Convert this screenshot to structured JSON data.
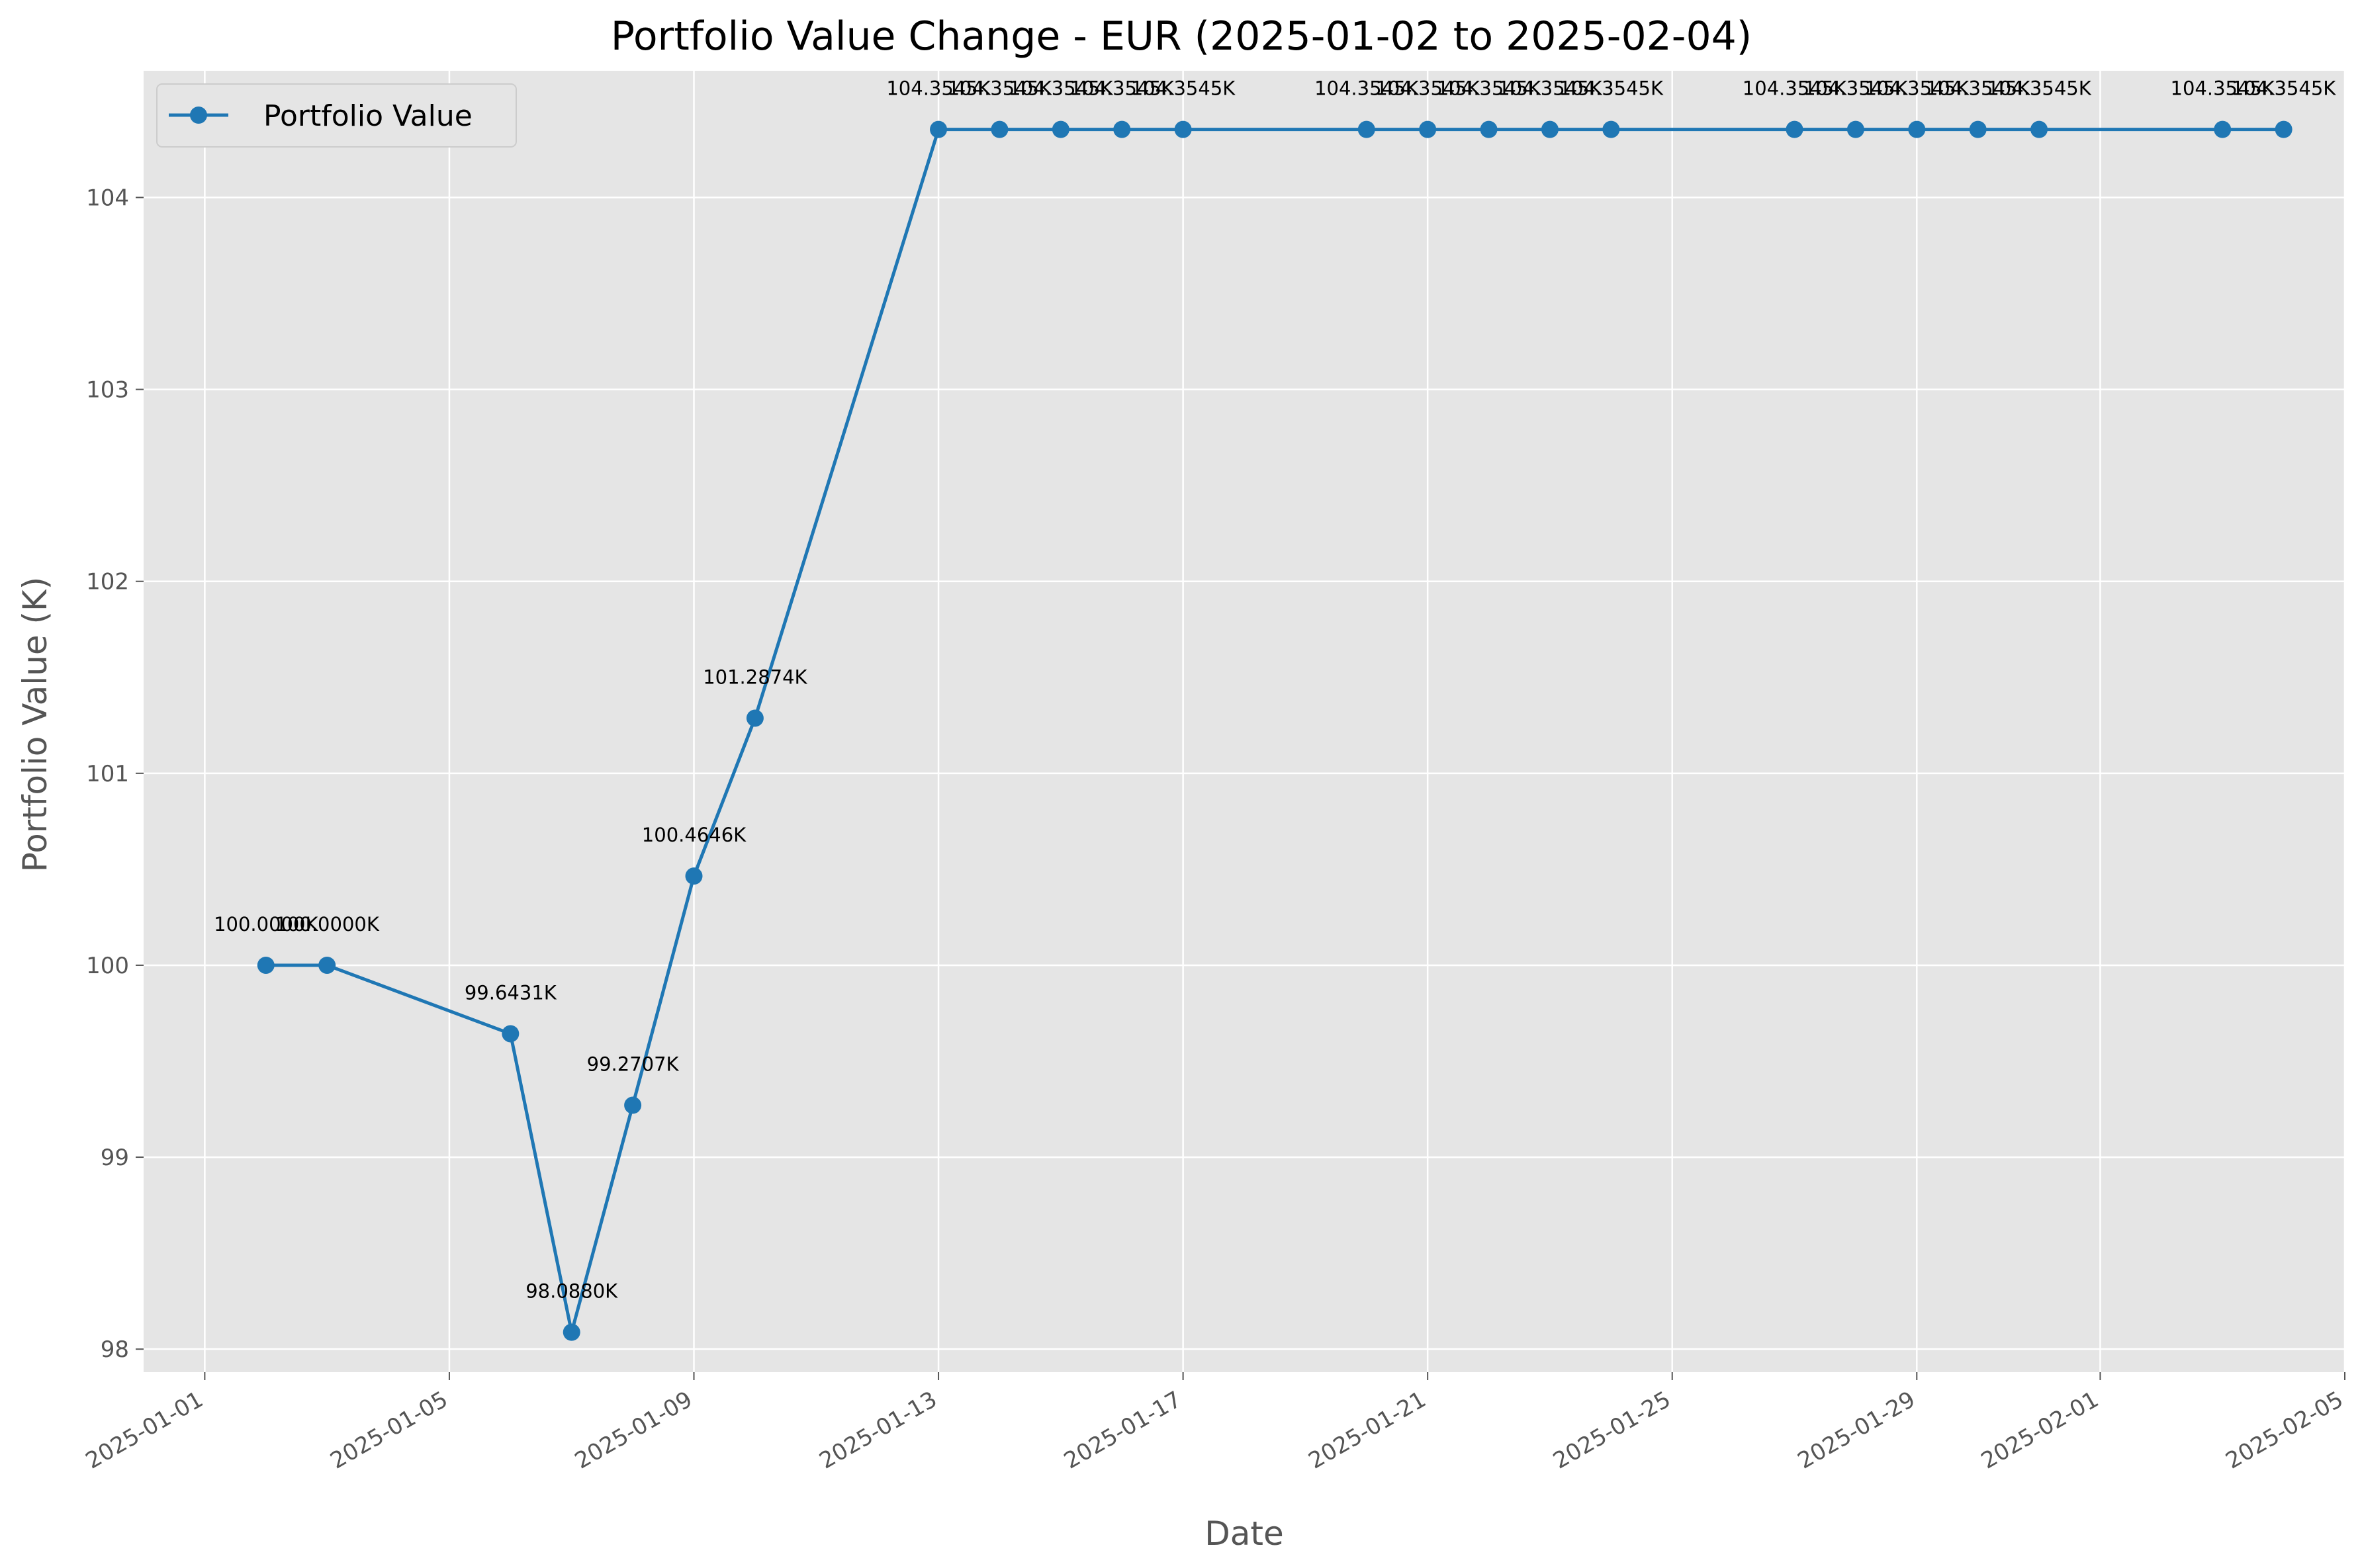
{
  "chart_data": {
    "type": "line",
    "title": "Portfolio Value Change - EUR (2025-01-02 to 2025-02-04)",
    "xlabel": "Date",
    "ylabel": "Portfolio Value (K)",
    "x_tick_labels": [
      "2025-01-01",
      "2025-01-05",
      "2025-01-09",
      "2025-01-13",
      "2025-01-17",
      "2025-01-21",
      "2025-01-25",
      "2025-01-29",
      "2025-02-01",
      "2025-02-05"
    ],
    "y_ticks": [
      98,
      99,
      100,
      101,
      102,
      103,
      104
    ],
    "xlim": [
      "2024-12-31",
      "2025-02-05"
    ],
    "ylim": [
      97.88,
      104.66
    ],
    "grid": true,
    "legend_position": "upper left",
    "colors": {
      "line": "#1f77b4",
      "background": "#e5e5e5",
      "grid": "#ffffff"
    },
    "series": [
      {
        "name": "Portfolio Value",
        "points": [
          {
            "x": "2025-01-02",
            "y": 100.0,
            "label": "100.0000K"
          },
          {
            "x": "2025-01-03",
            "y": 100.0,
            "label": "100.0000K"
          },
          {
            "x": "2025-01-06",
            "y": 99.6431,
            "label": "99.6431K"
          },
          {
            "x": "2025-01-07",
            "y": 98.088,
            "label": "98.0880K"
          },
          {
            "x": "2025-01-08",
            "y": 99.2707,
            "label": "99.2707K"
          },
          {
            "x": "2025-01-09",
            "y": 100.4646,
            "label": "100.4646K"
          },
          {
            "x": "2025-01-10",
            "y": 101.2874,
            "label": "101.2874K"
          },
          {
            "x": "2025-01-13",
            "y": 104.3545,
            "label": "104.3545K"
          },
          {
            "x": "2025-01-14",
            "y": 104.3545,
            "label": "104.3545K"
          },
          {
            "x": "2025-01-15",
            "y": 104.3545,
            "label": "104.3545K"
          },
          {
            "x": "2025-01-16",
            "y": 104.3545,
            "label": "104.3545K"
          },
          {
            "x": "2025-01-17",
            "y": 104.3545,
            "label": "104.3545K"
          },
          {
            "x": "2025-01-20",
            "y": 104.3545,
            "label": "104.3545K"
          },
          {
            "x": "2025-01-21",
            "y": 104.3545,
            "label": "104.3545K"
          },
          {
            "x": "2025-01-22",
            "y": 104.3545,
            "label": "104.3545K"
          },
          {
            "x": "2025-01-23",
            "y": 104.3545,
            "label": "104.3545K"
          },
          {
            "x": "2025-01-24",
            "y": 104.3545,
            "label": "104.3545K"
          },
          {
            "x": "2025-01-27",
            "y": 104.3545,
            "label": "104.3545K"
          },
          {
            "x": "2025-01-28",
            "y": 104.3545,
            "label": "104.3545K"
          },
          {
            "x": "2025-01-29",
            "y": 104.3545,
            "label": "104.3545K"
          },
          {
            "x": "2025-01-30",
            "y": 104.3545,
            "label": "104.3545K"
          },
          {
            "x": "2025-01-31",
            "y": 104.3545,
            "label": "104.3545K"
          },
          {
            "x": "2025-02-03",
            "y": 104.3545,
            "label": "104.3545K"
          },
          {
            "x": "2025-02-04",
            "y": 104.3545,
            "label": "104.3545K"
          }
        ]
      }
    ]
  }
}
